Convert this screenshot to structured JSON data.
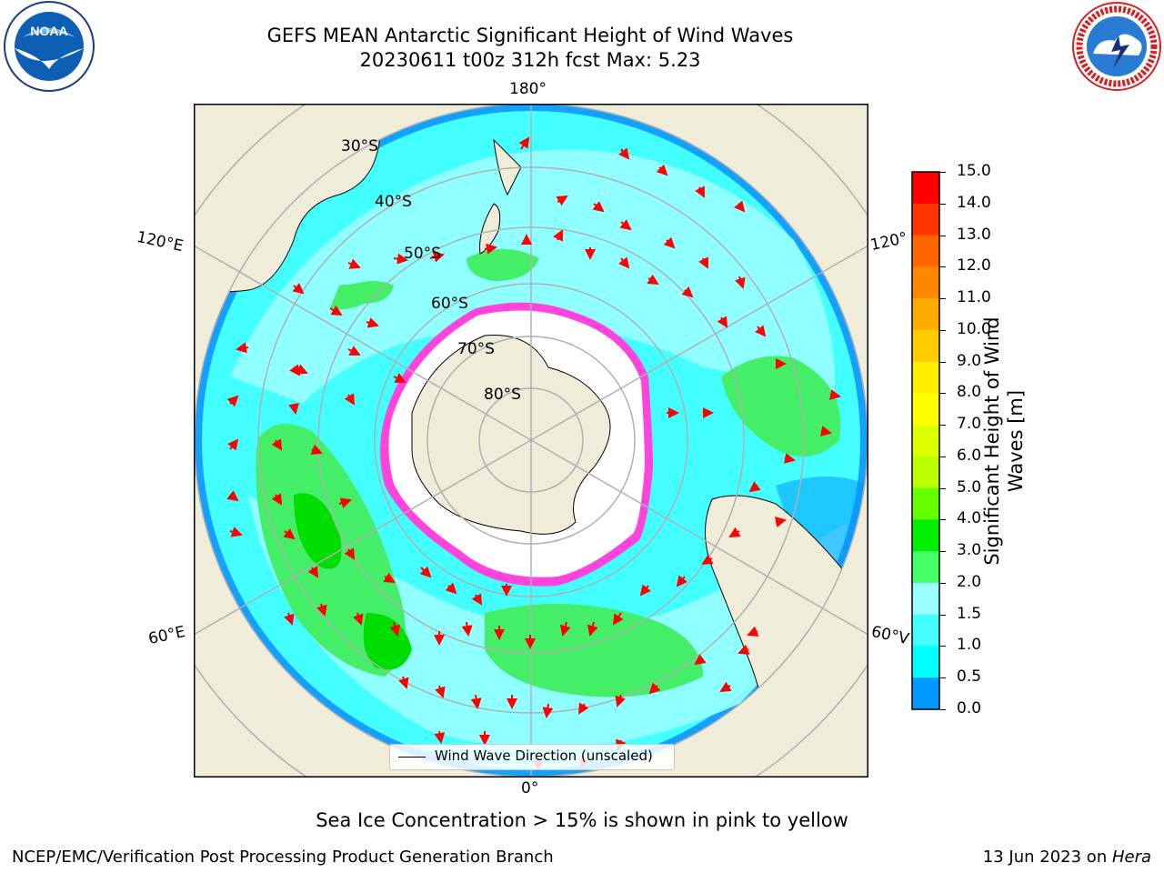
{
  "header": {
    "title_line1": "GEFS MEAN Antarctic Significant Height of Wind Waves",
    "title_line2": "20230611 t00z 312h fcst   Max: 5.23"
  },
  "map_labels": {
    "lon_top": "180°",
    "lon_bottom": "0°",
    "lon_left_upper": "120°E",
    "lon_left_lower": "60°E",
    "lon_right_upper": "120°",
    "lon_right_lower": "60°V",
    "lat_30": "30°S",
    "lat_40": "40°S",
    "lat_50": "50°S",
    "lat_60": "60°S",
    "lat_70": "70°S",
    "lat_80": "80°S"
  },
  "legend": {
    "label": "Wind Wave Direction (unscaled)"
  },
  "colorbar": {
    "title_line1": "Significant Height of Wind",
    "title_line2": "Waves [m]",
    "ticks": [
      "15.0",
      "14.0",
      "13.0",
      "12.0",
      "11.0",
      "10.0",
      "9.0",
      "8.0",
      "7.0",
      "6.0",
      "5.0",
      "4.0",
      "3.0",
      "2.0",
      "1.5",
      "1.0",
      "0.5",
      "0.0"
    ],
    "colors": [
      "#ff0000",
      "#ff3300",
      "#ff6600",
      "#ff8800",
      "#ffaa00",
      "#ffcc00",
      "#ffee00",
      "#ffff00",
      "#ddff00",
      "#bbff00",
      "#66ff00",
      "#00ee00",
      "#44ff66",
      "#99ffff",
      "#44ffff",
      "#00ffff",
      "#0099ff",
      "#0044ff",
      "#0000ff"
    ]
  },
  "note": "Sea Ice Concentration > 15% is shown in pink to yellow",
  "footer": {
    "left": "NCEP/EMC/Verification Post Processing Product Generation Branch",
    "right_date": "13 Jun 2023 on ",
    "right_host": "Hera"
  },
  "logos": {
    "noaa_text": "NOAA",
    "nws_text": "NATIONAL WEATHER SERVICE"
  },
  "colors": {
    "land": "#efedd9",
    "ocean_low": "#00ffff",
    "ocean_mid": "#99ffff",
    "ocean_high": "#44ee66",
    "ice": "#ffffff",
    "ice_edge": "#ff44dd",
    "arrow": "#ff0000"
  }
}
